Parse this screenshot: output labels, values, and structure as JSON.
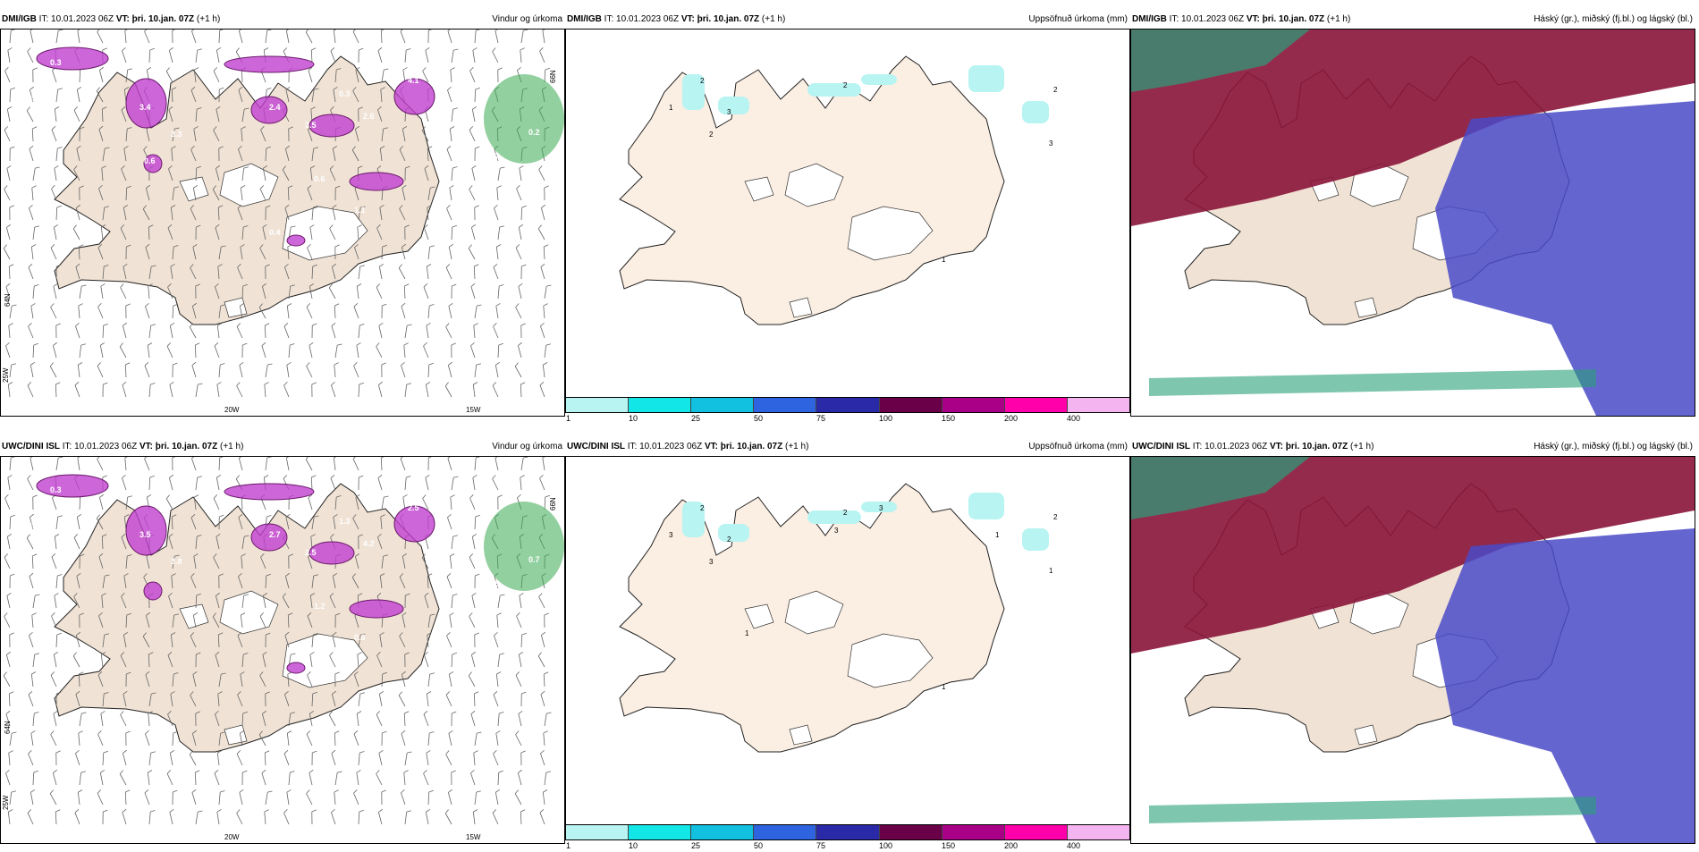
{
  "panels": [
    {
      "id": "p1",
      "model": "DMI/IGB",
      "it_label": "IT:",
      "it": "10.01.2023 06Z",
      "vt_label": "VT:",
      "vt": "þri. 10.jan. 07Z",
      "lead": "(+1 h)",
      "title": "Vindur og úrkoma",
      "kind": "wind",
      "values": [
        "0.3",
        "0.3",
        "3.4",
        "3.3",
        "1.1",
        "2.4",
        "3.5",
        "0.3",
        "4.1",
        "5.0",
        "2.6",
        "0.2",
        "0.7",
        "0.6",
        "1.1",
        "0.4",
        "0.4",
        "0.6"
      ],
      "axis": {
        "lat_top": "66N",
        "lat_bottom": "64N",
        "lon_left": "20W",
        "lon_right": "15W",
        "corner": "25W"
      }
    },
    {
      "id": "p2",
      "model": "DMI/IGB",
      "it_label": "IT:",
      "it": "10.01.2023 06Z",
      "vt_label": "VT:",
      "vt": "þri. 10.jan. 07Z",
      "lead": "(+1 h)",
      "title": "Uppsöfnuð úrkoma (mm)",
      "kind": "accum",
      "values": [
        "2",
        "1",
        "2",
        "3",
        "2",
        "1",
        "2",
        "3"
      ]
    },
    {
      "id": "p3",
      "model": "DMI/IGB",
      "it_label": "IT:",
      "it": "10.01.2023 06Z",
      "vt_label": "VT:",
      "vt": "þri. 10.jan. 07Z",
      "lead": "(+1 h)",
      "title": "Háský (gr.), miðský (fj.bl.) og lágský (bl.)",
      "kind": "cloud"
    },
    {
      "id": "p4",
      "model": "UWC/DINI ISL",
      "it_label": "IT:",
      "it": "10.01.2023 06Z",
      "vt_label": "VT:",
      "vt": "þri. 10.jan. 07Z",
      "lead": "(+1 h)",
      "title": "Vindur og úrkoma",
      "kind": "wind",
      "values": [
        "0.3",
        "0.5",
        "3.5",
        "3.8",
        "0.4",
        "2.7",
        "2.5",
        "1.3",
        "2.5",
        "0.6",
        "4.2",
        "0.7",
        "0.5",
        "1.2",
        "0.6"
      ],
      "axis": {
        "lat_top": "66N",
        "lat_bottom": "64N",
        "lon_left": "20W",
        "lon_right": "15W",
        "corner": "25W"
      }
    },
    {
      "id": "p5",
      "model": "UWC/DINI ISL",
      "it_label": "IT:",
      "it": "10.01.2023 06Z",
      "vt_label": "VT:",
      "vt": "þri. 10.jan. 07Z",
      "lead": "(+1 h)",
      "title": "Uppsöfnuð úrkoma (mm)",
      "kind": "accum",
      "values": [
        "2",
        "3",
        "3",
        "2",
        "2",
        "1",
        "2",
        "1",
        "3",
        "1",
        "3",
        "1"
      ]
    },
    {
      "id": "p6",
      "model": "UWC/DINI ISL",
      "it_label": "IT:",
      "it": "10.01.2023 06Z",
      "vt_label": "VT:",
      "vt": "þri. 10.jan. 07Z",
      "lead": "(+1 h)",
      "title": "Háský (gr.), miðský (fj.bl.) og lágský (bl.)",
      "kind": "cloud"
    }
  ],
  "colorbar": {
    "labels": [
      "1",
      "10",
      "25",
      "50",
      "75",
      "100",
      "150",
      "200",
      "400"
    ],
    "colors": [
      "#b8f4f2",
      "#12e6e6",
      "#12c0e0",
      "#2e64e0",
      "#2a2aa8",
      "#6a0048",
      "#aa0088",
      "#ff00aa",
      "#f4b4f0"
    ]
  },
  "colors": {
    "land": "#f0e2d4",
    "land_accum": "#fbeee2",
    "precip": "#c040d0",
    "precip_dark": "#6a1a6a",
    "wind_green": "#3aaa50",
    "cloud_high": "#8a1438",
    "cloud_mid": "#4a4ac8",
    "cloud_low": "#2aa07a"
  }
}
